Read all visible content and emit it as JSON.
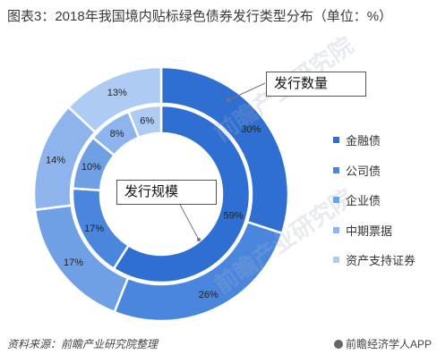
{
  "title": "图表3：2018年我国境内贴标绿色债券发行类型分布（单位：%）",
  "legend": [
    {
      "label": "金融债",
      "color": "#2e6fd1"
    },
    {
      "label": "公司债",
      "color": "#4b86de"
    },
    {
      "label": "企业债",
      "color": "#6fa0e6"
    },
    {
      "label": "中期票据",
      "color": "#8db4ec"
    },
    {
      "label": "资产支持证券",
      "color": "#aecbf3"
    }
  ],
  "callouts": {
    "outer": "发行数量",
    "inner": "发行规模"
  },
  "source": "资料来源：前瞻产业研究院整理",
  "brand": "前瞻经济学人APP",
  "chart_data": {
    "type": "pie",
    "series": [
      {
        "name": "发行数量",
        "categories": [
          "金融债",
          "公司债",
          "企业债",
          "中期票据",
          "资产支持证券"
        ],
        "values": [
          30,
          26,
          17,
          14,
          13
        ],
        "labels": [
          "30%",
          "26%",
          "17%",
          "14%",
          "13%"
        ]
      },
      {
        "name": "发行规模",
        "categories": [
          "金融债",
          "公司债",
          "企业债",
          "中期票据",
          "资产支持证券"
        ],
        "values": [
          59,
          17,
          10,
          8,
          6
        ],
        "labels": [
          "59%",
          "17%",
          "10%",
          "8%",
          "6%"
        ]
      }
    ]
  }
}
